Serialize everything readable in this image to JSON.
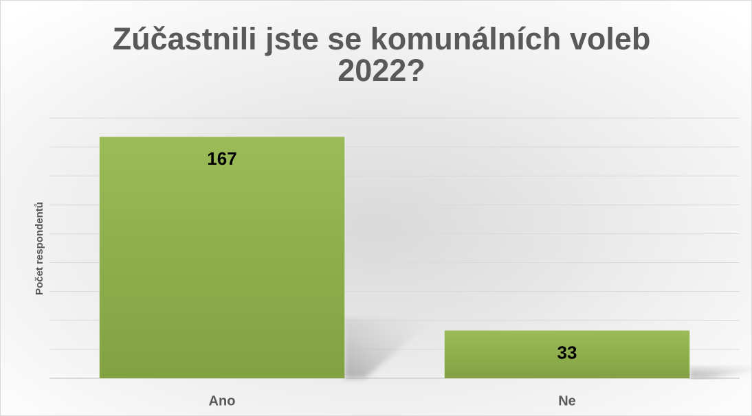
{
  "chart_data": {
    "type": "bar",
    "title": "Zúčastnili jste se komunálních voleb 2022?",
    "y_label": "Počet respondentů",
    "categories": [
      "Ano",
      "Ne"
    ],
    "values": [
      167,
      33
    ],
    "color": "#9bbb59",
    "ylim": [
      0,
      180
    ],
    "yticks": [
      0,
      20,
      40,
      60,
      80,
      100,
      120,
      140,
      160,
      180
    ],
    "grid": true
  }
}
